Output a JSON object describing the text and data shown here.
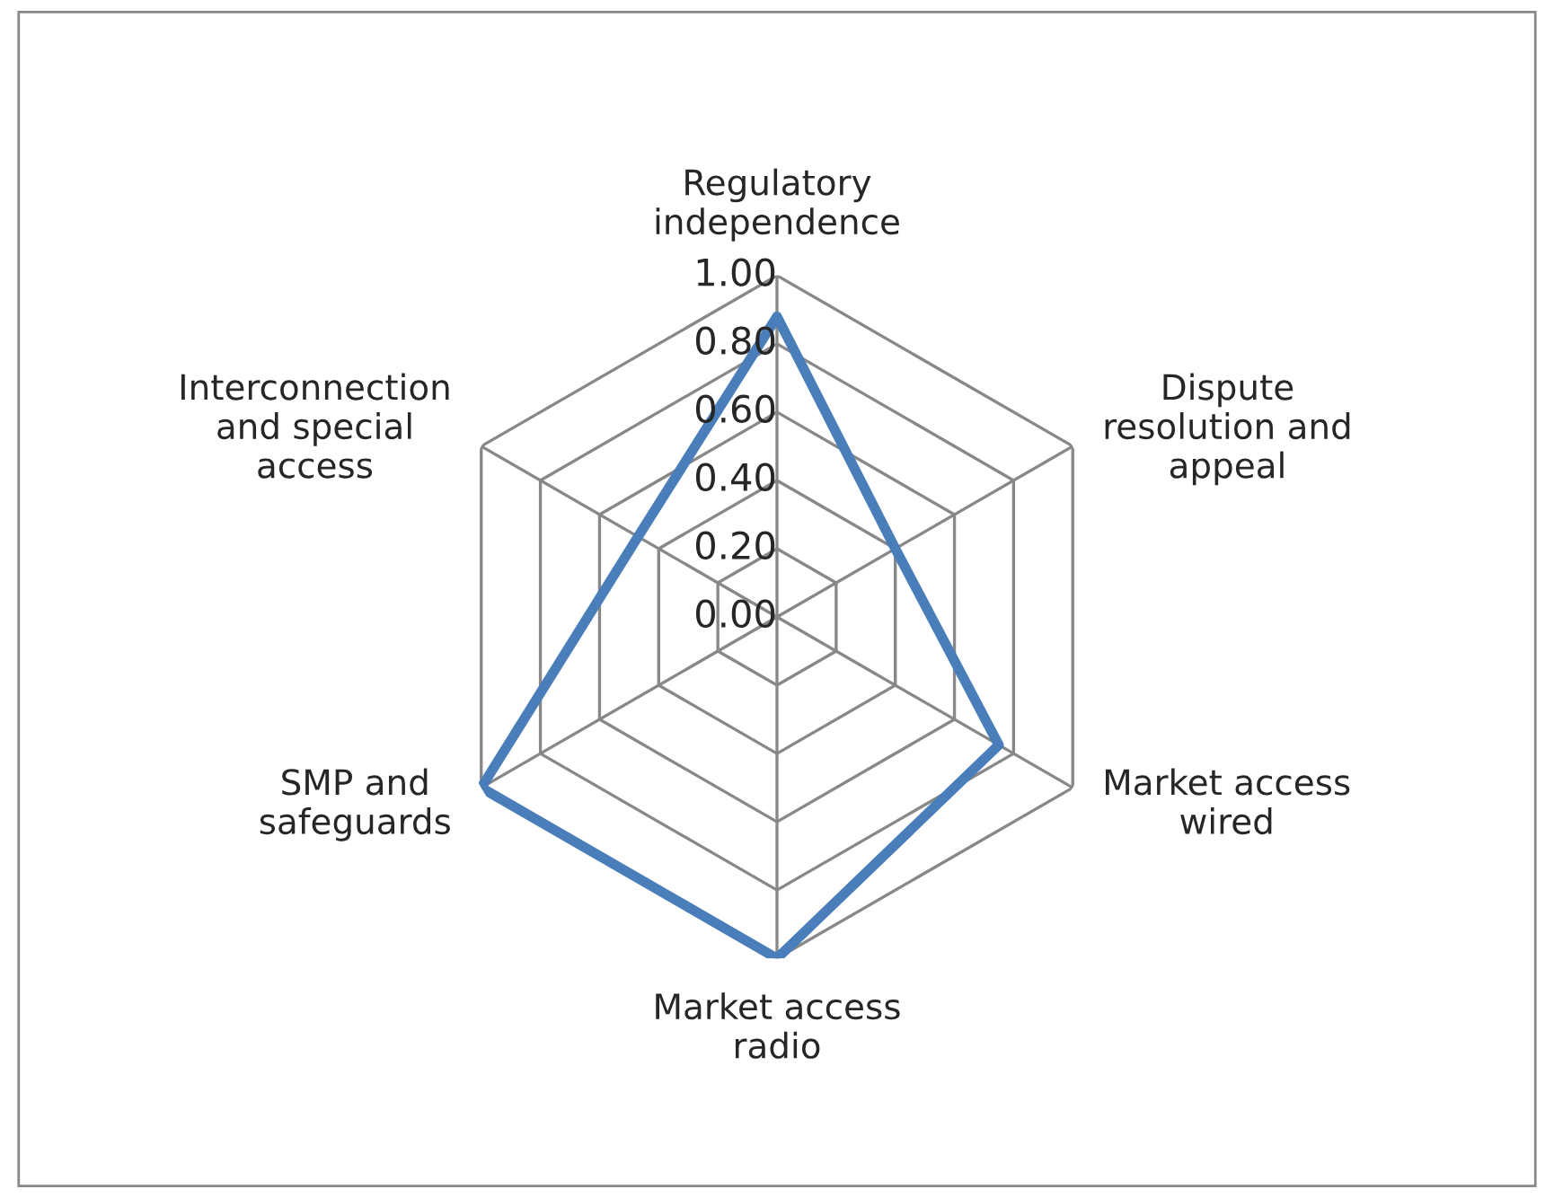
{
  "chart_data": {
    "type": "radar",
    "categories": [
      "Regulatory\nindependence",
      "Dispute\nresolution and\nappeal",
      "Market access\nwired",
      "Market access\nradio",
      "SMP and\nsafeguards",
      "Interconnection\nand special\naccess"
    ],
    "series": [
      {
        "color": "#4a7ebb",
        "values": [
          0.88,
          0.4,
          0.75,
          1.0,
          1.0,
          0.47
        ]
      }
    ],
    "ylim": [
      0,
      1
    ],
    "yticks": [
      {
        "value": 0,
        "label": "0.00"
      },
      {
        "value": 0.2,
        "label": "0.20"
      },
      {
        "value": 0.4,
        "label": "0.40"
      },
      {
        "value": 0.6,
        "label": "0.60"
      },
      {
        "value": 0.8,
        "label": "0.80"
      },
      {
        "value": 1,
        "label": "1.00"
      }
    ],
    "grid": true,
    "legend": false
  }
}
